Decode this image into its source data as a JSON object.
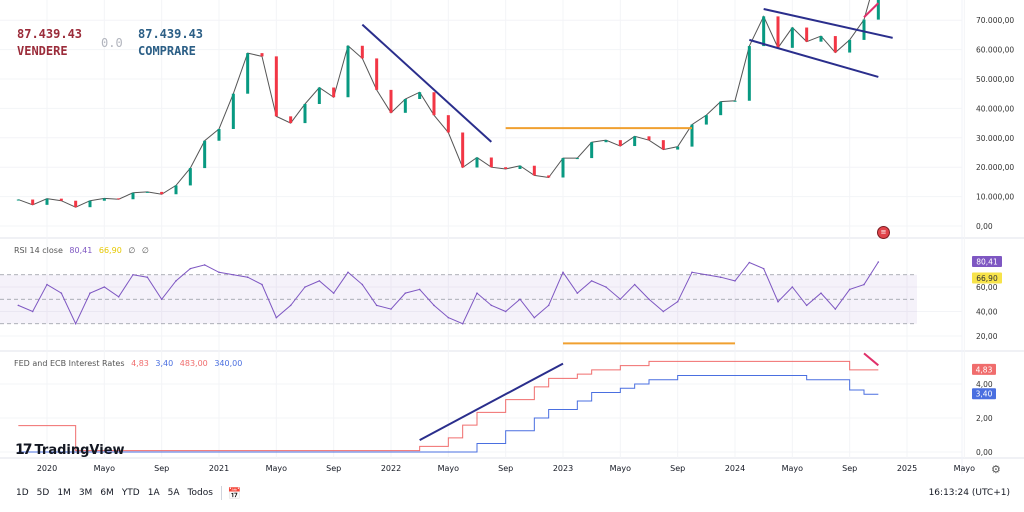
{
  "trade_widget": {
    "sell_price": "87.439.43",
    "sell_label": "VENDERE",
    "spread": "0.0",
    "buy_price": "87.439.43",
    "buy_label": "COMPRARE"
  },
  "rsi_legend": {
    "name": "RSI 14 close",
    "value": "80,41",
    "ma_value": "66,90",
    "extra1": "∅",
    "extra2": "∅"
  },
  "rates_legend": {
    "name": "FED and ECB Interest Rates",
    "fed": "4,83",
    "ecb": "3,40",
    "fed_raw": "483,00",
    "ecb_raw": "340,00"
  },
  "logo": {
    "text": "TradingView"
  },
  "toolbar": {
    "ranges": [
      "1D",
      "5D",
      "1M",
      "3M",
      "6M",
      "YTD",
      "1A",
      "5A",
      "Todos"
    ],
    "clock": "16:13:24 (UTC+1)"
  },
  "colors": {
    "candle_up": "#089981",
    "candle_down": "#f23645",
    "rsi_line": "#7e57c2",
    "rsi_ma": "#f7e34a",
    "fed": "#f06d6d",
    "ecb": "#4a6fe0",
    "drawing_blue": "#2a2e8c",
    "drawing_orange": "#f0a030",
    "drawing_pink": "#e0306a"
  },
  "chart_data": [
    {
      "type": "candlestick-line",
      "pane": "price",
      "ylim": [
        0,
        75000
      ],
      "y_ticks": [
        "0,00",
        "10.000,00",
        "20.000,00",
        "30.000,00",
        "40.000,00",
        "50.000,00",
        "60.000,00",
        "70.000,00"
      ],
      "y_tick_values": [
        0,
        10000,
        20000,
        30000,
        40000,
        50000,
        60000,
        70000
      ],
      "x": [
        "2019-11",
        "2019-12",
        "2020-01",
        "2020-02",
        "2020-03",
        "2020-04",
        "2020-05",
        "2020-06",
        "2020-07",
        "2020-08",
        "2020-09",
        "2020-10",
        "2020-11",
        "2020-12",
        "2021-01",
        "2021-02",
        "2021-03",
        "2021-04",
        "2021-05",
        "2021-06",
        "2021-07",
        "2021-08",
        "2021-09",
        "2021-10",
        "2021-11",
        "2021-12",
        "2022-01",
        "2022-02",
        "2022-03",
        "2022-04",
        "2022-05",
        "2022-06",
        "2022-07",
        "2022-08",
        "2022-09",
        "2022-10",
        "2022-11",
        "2022-12",
        "2023-01",
        "2023-02",
        "2023-03",
        "2023-04",
        "2023-05",
        "2023-06",
        "2023-07",
        "2023-08",
        "2023-09",
        "2023-10",
        "2023-11",
        "2023-12",
        "2024-01",
        "2024-02",
        "2024-03",
        "2024-04",
        "2024-05",
        "2024-06",
        "2024-07",
        "2024-08",
        "2024-09",
        "2024-10",
        "2024-11"
      ],
      "values": [
        9000,
        7200,
        9300,
        8600,
        6400,
        8600,
        9400,
        9100,
        11300,
        11600,
        10800,
        13800,
        19700,
        29000,
        33000,
        45000,
        58800,
        57700,
        37300,
        35000,
        41500,
        47100,
        43800,
        61300,
        57000,
        46300,
        38500,
        43200,
        45500,
        37700,
        31800,
        19900,
        23300,
        20000,
        19400,
        20500,
        17200,
        16500,
        23100,
        23100,
        28500,
        29200,
        27200,
        30500,
        29200,
        26000,
        27000,
        34500,
        37700,
        42300,
        42600,
        61200,
        71300,
        60600,
        67500,
        62700,
        64600,
        59000,
        63300,
        70200,
        87439.43
      ],
      "drawings": [
        {
          "type": "trendline",
          "color": "drawing_blue",
          "from": [
            "2021-11",
            68500
          ],
          "to": [
            "2022-08",
            28600
          ]
        },
        {
          "type": "trendline",
          "color": "drawing_orange",
          "from": [
            "2022-09",
            33300
          ],
          "to": [
            "2023-10",
            33300
          ]
        },
        {
          "type": "trendline",
          "color": "drawing_blue",
          "from": [
            "2024-03",
            73800
          ],
          "to": [
            "2024-12",
            64000
          ]
        },
        {
          "type": "trendline",
          "color": "drawing_blue",
          "from": [
            "2024-02",
            63300
          ],
          "to": [
            "2024-11",
            50700
          ]
        },
        {
          "type": "trendline",
          "color": "drawing_pink",
          "from": [
            "2024-10",
            71000
          ],
          "to": [
            "2024-11",
            75800
          ]
        }
      ]
    },
    {
      "type": "line",
      "pane": "rsi",
      "ylim": [
        10,
        90
      ],
      "y_ticks": [
        "20,00",
        "40,00",
        "60,00"
      ],
      "y_tick_values": [
        20,
        40,
        60
      ],
      "bands": [
        30,
        50,
        70
      ],
      "last_value_label": "80,41",
      "ma_value_label": "66,90",
      "x_ref": "price",
      "values": [
        45,
        40,
        62,
        55,
        30,
        55,
        60,
        52,
        70,
        68,
        50,
        65,
        75,
        78,
        72,
        70,
        68,
        62,
        35,
        45,
        60,
        65,
        55,
        72,
        62,
        45,
        42,
        55,
        58,
        45,
        35,
        30,
        55,
        45,
        40,
        50,
        35,
        45,
        72,
        55,
        65,
        60,
        50,
        62,
        50,
        40,
        48,
        72,
        70,
        68,
        65,
        80,
        75,
        48,
        60,
        45,
        55,
        42,
        58,
        62,
        80.41
      ],
      "drawings": [
        {
          "type": "trendline",
          "color": "drawing_orange",
          "from": [
            "2023-01",
            14
          ],
          "to": [
            "2024-01",
            14
          ]
        }
      ]
    },
    {
      "type": "step",
      "pane": "rates",
      "ylim": [
        0,
        5.8
      ],
      "y_ticks": [
        "0,00",
        "2,00",
        "4,00"
      ],
      "y_tick_values": [
        0,
        2,
        4
      ],
      "series": [
        {
          "name": "FED",
          "color": "fed",
          "last_label": "4,83",
          "points": [
            [
              "2019-11",
              1.55
            ],
            [
              "2020-03",
              0.08
            ],
            [
              "2022-03",
              0.33
            ],
            [
              "2022-05",
              0.83
            ],
            [
              "2022-06",
              1.58
            ],
            [
              "2022-07",
              2.33
            ],
            [
              "2022-09",
              3.08
            ],
            [
              "2022-11",
              3.83
            ],
            [
              "2022-12",
              4.33
            ],
            [
              "2023-02",
              4.58
            ],
            [
              "2023-03",
              4.83
            ],
            [
              "2023-05",
              5.08
            ],
            [
              "2023-07",
              5.33
            ],
            [
              "2024-09",
              4.83
            ],
            [
              "2024-11",
              4.83
            ]
          ]
        },
        {
          "name": "ECB",
          "color": "ecb",
          "last_label": "3,40",
          "points": [
            [
              "2019-11",
              0
            ],
            [
              "2022-07",
              0.5
            ],
            [
              "2022-09",
              1.25
            ],
            [
              "2022-11",
              2.0
            ],
            [
              "2022-12",
              2.5
            ],
            [
              "2023-02",
              3.0
            ],
            [
              "2023-03",
              3.5
            ],
            [
              "2023-05",
              3.75
            ],
            [
              "2023-06",
              4.0
            ],
            [
              "2023-07",
              4.25
            ],
            [
              "2023-09",
              4.5
            ],
            [
              "2024-06",
              4.25
            ],
            [
              "2024-09",
              3.65
            ],
            [
              "2024-10",
              3.4
            ],
            [
              "2024-11",
              3.4
            ]
          ]
        }
      ],
      "drawings": [
        {
          "type": "trendline",
          "color": "drawing_blue",
          "from": [
            "2022-03",
            0.7
          ],
          "to": [
            "2023-01",
            5.2
          ]
        },
        {
          "type": "trendline",
          "color": "drawing_pink",
          "from": [
            "2024-10",
            5.8
          ],
          "to": [
            "2024-11",
            5.1
          ]
        }
      ]
    }
  ],
  "x_axis": {
    "ticks": [
      {
        "label": "2020",
        "date": "2020-01"
      },
      {
        "label": "Mayo",
        "date": "2020-05"
      },
      {
        "label": "Sep",
        "date": "2020-09"
      },
      {
        "label": "2021",
        "date": "2021-01"
      },
      {
        "label": "Mayo",
        "date": "2021-05"
      },
      {
        "label": "Sep",
        "date": "2021-09"
      },
      {
        "label": "2022",
        "date": "2022-01"
      },
      {
        "label": "Mayo",
        "date": "2022-05"
      },
      {
        "label": "Sep",
        "date": "2022-09"
      },
      {
        "label": "2023",
        "date": "2023-01"
      },
      {
        "label": "Mayo",
        "date": "2023-05"
      },
      {
        "label": "Sep",
        "date": "2023-09"
      },
      {
        "label": "2024",
        "date": "2024-01"
      },
      {
        "label": "Mayo",
        "date": "2024-05"
      },
      {
        "label": "Sep",
        "date": "2024-09"
      },
      {
        "label": "2025",
        "date": "2025-01"
      },
      {
        "label": "Mayo",
        "date": "2025-05"
      }
    ]
  }
}
